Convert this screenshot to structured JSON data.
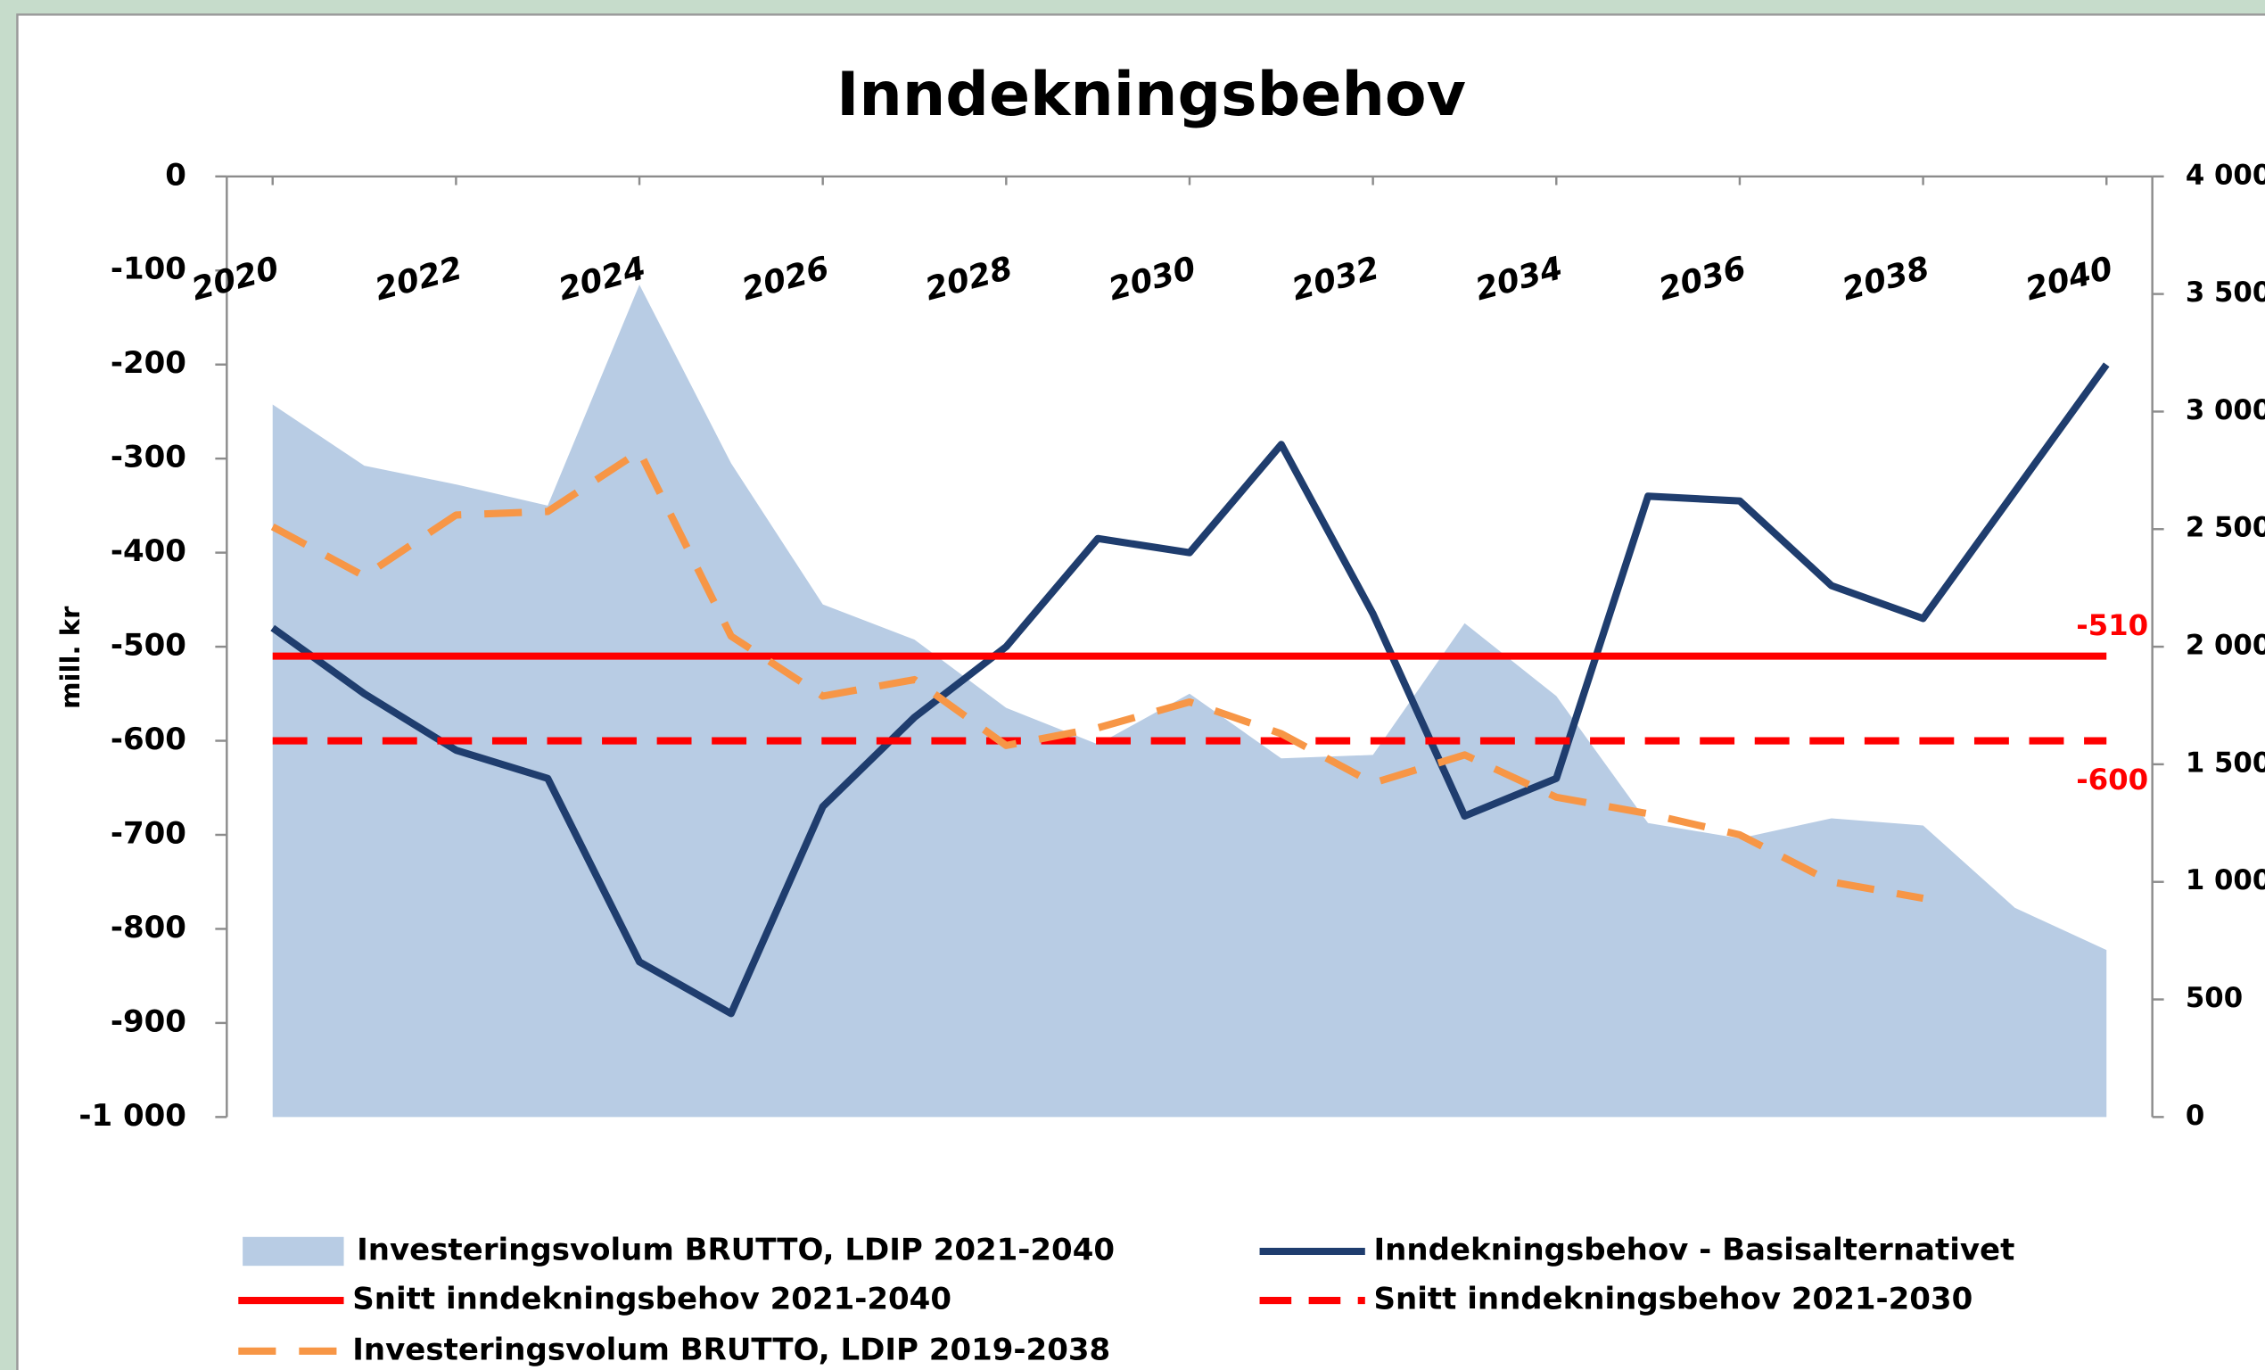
{
  "chart_data": {
    "type": "line",
    "title": "Inndekningsbehov",
    "ylabel": "mill. kr",
    "x": [
      2020,
      2021,
      2022,
      2023,
      2024,
      2025,
      2026,
      2027,
      2028,
      2029,
      2030,
      2031,
      2032,
      2033,
      2034,
      2035,
      2036,
      2037,
      2038,
      2039,
      2040
    ],
    "xlim": [
      2020,
      2040
    ],
    "xticks": [
      2020,
      2022,
      2024,
      2026,
      2028,
      2030,
      2032,
      2034,
      2036,
      2038,
      2040
    ],
    "ylim": [
      -1000,
      0
    ],
    "yticks": [
      0,
      -100,
      -200,
      -300,
      -400,
      -500,
      -600,
      -700,
      -800,
      -900,
      {
        "value": -1000,
        "label": "-1 000"
      }
    ],
    "y2lim": [
      0,
      4000
    ],
    "y2ticks": [
      {
        "value": 4000,
        "label": "4 000"
      },
      {
        "value": 3500,
        "label": "3 500"
      },
      {
        "value": 3000,
        "label": "3 000"
      },
      {
        "value": 2500,
        "label": "2 500"
      },
      {
        "value": 2000,
        "label": "2 000"
      },
      {
        "value": 1500,
        "label": "1 500"
      },
      {
        "value": 1000,
        "label": "1 000"
      },
      500,
      0
    ],
    "series": [
      {
        "name": "Investeringsvolum BRUTTO, LDIP 2021-2040",
        "color": "#b8cce4",
        "style": "area",
        "axis": "y2",
        "values": [
          3030,
          2770,
          2690,
          2600,
          3540,
          2780,
          2180,
          2030,
          1740,
          1585,
          1800,
          1525,
          1540,
          2100,
          1790,
          1250,
          1185,
          1270,
          1240,
          890,
          710
        ]
      },
      {
        "name": "Inndekningsbehov - Basisalternativet",
        "color": "#1f3d6e",
        "style": "line",
        "values": [
          -480,
          -550,
          -610,
          -640,
          -835,
          -890,
          -670,
          -575,
          -500,
          -385,
          -400,
          -285,
          -465,
          -680,
          -640,
          -340,
          -345,
          -435,
          -470,
          -335,
          -200
        ]
      },
      {
        "name": "Snitt inndekningsbehov 2021-2040",
        "color": "#ff0000",
        "style": "line",
        "label": true,
        "values": [
          -510,
          -510,
          -510,
          -510,
          -510,
          -510,
          -510,
          -510,
          -510,
          -510,
          -510,
          -510,
          -510,
          -510,
          -510,
          -510,
          -510,
          -510,
          -510,
          -510,
          -510
        ]
      },
      {
        "name": "Snitt inndekningsbehov 2021-2030",
        "color": "#ff0000",
        "style": "line",
        "dash": true,
        "label": true,
        "values": [
          -600,
          -600,
          -600,
          -600,
          -600,
          -600,
          -600,
          -600,
          -600,
          -600,
          -600,
          -600,
          -600,
          -600,
          -600,
          -600,
          -600,
          -600,
          -600,
          -600,
          -600
        ]
      },
      {
        "name": "Investeringsvolum BRUTTO, LDIP 2019-2038",
        "color": "#f79646",
        "style": "line",
        "dash": true,
        "axis": "y2",
        "values": [
          2510,
          2300,
          2560,
          2575,
          2830,
          2045,
          1790,
          1860,
          1580,
          1655,
          1765,
          1630,
          1420,
          1540,
          1360,
          1290,
          1200,
          1000,
          930,
          null,
          null
        ]
      }
    ]
  }
}
